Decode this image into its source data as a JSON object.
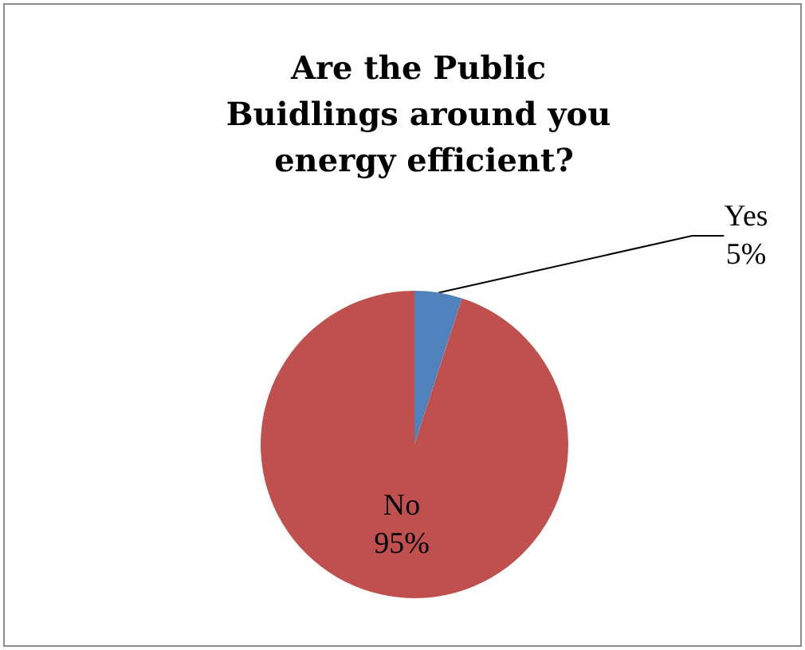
{
  "chart_data": {
    "type": "pie",
    "title": "Are the Public Buidlings around you energy efficient?",
    "categories": [
      "Yes",
      "No"
    ],
    "values": [
      5,
      95
    ],
    "colors": [
      "#4f81bd",
      "#c0504d"
    ],
    "value_labels": [
      "5%",
      "95%"
    ],
    "legend": false
  }
}
